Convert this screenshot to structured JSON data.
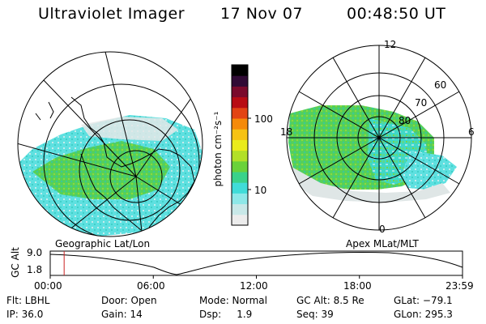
{
  "header": {
    "instrument": "Ultraviolet Imager",
    "date": "17 Nov 07",
    "time": "00:48:50 UT"
  },
  "left_panel": {
    "caption": "Geographic Lat/Lon"
  },
  "right_panel": {
    "caption": "Apex MLat/MLT",
    "mlt_labels": [
      "12",
      "18",
      "6",
      "0"
    ],
    "mlat_labels": [
      "60",
      "70",
      "80"
    ]
  },
  "colorbar": {
    "unit_label": "photon cm⁻²s⁻¹",
    "ticks": [
      "100",
      "10"
    ],
    "scale": "log",
    "colors": [
      "#ececec",
      "#c8e8e8",
      "#8de8e8",
      "#40dcd8",
      "#3ad28a",
      "#6ad23a",
      "#b2e028",
      "#eaeb1c",
      "#f6c214",
      "#f58a0a",
      "#e24414",
      "#b80c14",
      "#7a0a2c",
      "#300a35",
      "#000000"
    ]
  },
  "altitude_plot": {
    "ylabel": "GC Alt",
    "yticks": [
      "9.0",
      "1.8"
    ],
    "xticks": [
      "00:00",
      "06:00",
      "12:00",
      "18:00",
      "23:59"
    ],
    "marker_time_hours": 0.81,
    "line_color": "#000000",
    "marker_color": "#cc2222"
  },
  "footer": {
    "flt": "Flt: LBHL",
    "ip": "IP: 36.0",
    "door": "Door: Open",
    "gain": "Gain: 14",
    "mode": "Mode: Normal",
    "dsp": "Dsp:     1.9",
    "gc_alt": "GC Alt: 8.5 Re",
    "seq": "Seq: 39",
    "glat": "GLat: −79.1",
    "glon": "GLon: 295.3"
  }
}
